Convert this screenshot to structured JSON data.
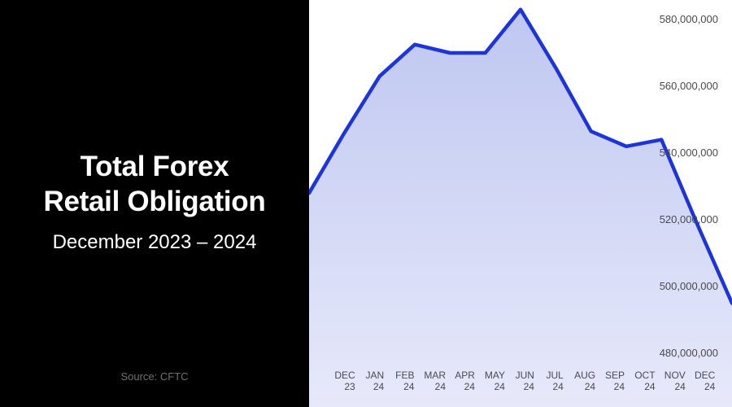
{
  "panel": {
    "title_line1": "Total Forex",
    "title_line2": "Retail Obligation",
    "subtitle": "December 2023 – 2024",
    "source": "Source: CFTC",
    "background": "#000000",
    "text_color": "#ffffff"
  },
  "chart_data": {
    "type": "area",
    "title": "Total Forex Retail Obligation",
    "subtitle": "December 2023 – 2024",
    "source": "CFTC",
    "categories": [
      "DEC 23",
      "JAN 24",
      "FEB 24",
      "MAR 24",
      "APR 24",
      "MAY 24",
      "JUN 24",
      "JUL 24",
      "AUG 24",
      "SEP 24",
      "OCT 24",
      "NOV 24",
      "DEC 24"
    ],
    "values": [
      528000000,
      546000000,
      563000000,
      572500000,
      570000000,
      570000000,
      583000000,
      565500000,
      546500000,
      542000000,
      544000000,
      519000000,
      495000000
    ],
    "ylim": [
      463900000,
      585850000
    ],
    "y_tick_values": [
      580000000,
      560000000,
      540000000,
      520000000,
      500000000,
      480000000
    ],
    "y_tick_labels": [
      "580,000,000",
      "560,000,000",
      "540,000,000",
      "520,000,000",
      "500,000,000",
      "480,000,000"
    ],
    "xlabel": "",
    "ylabel": "",
    "grid": false,
    "legend": false,
    "line_color": "#1d34da",
    "fill_top": "#bfc7f1",
    "fill_bottom": "#e7e9fa",
    "y_tick_side": "right",
    "x_tick_lines": 2
  }
}
